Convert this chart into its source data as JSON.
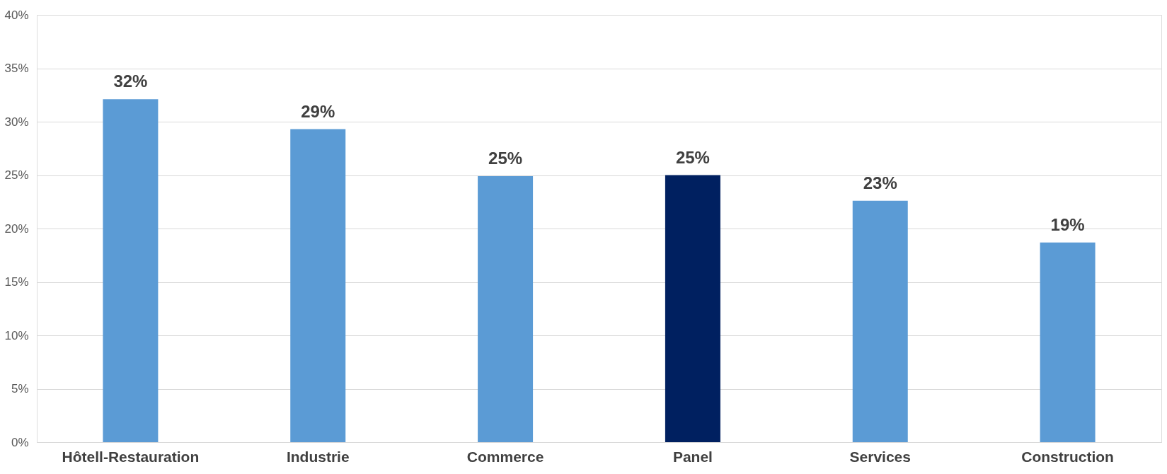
{
  "chart_data": {
    "type": "bar",
    "categories": [
      "Hôtell-Restauration",
      "Industrie",
      "Commerce",
      "Panel",
      "Services",
      "Construction"
    ],
    "values": [
      32.1,
      29.3,
      24.9,
      25.0,
      22.6,
      18.7
    ],
    "colors": [
      "#5b9bd5",
      "#5b9bd5",
      "#5b9bd5",
      "#002060",
      "#5b9bd5",
      "#5b9bd5"
    ],
    "value_labels": [
      "32%",
      "29%",
      "25%",
      "25%",
      "23%",
      "19%"
    ],
    "ylim": [
      0,
      40
    ],
    "yticks": [
      {
        "value": 0,
        "label": "0%"
      },
      {
        "value": 5,
        "label": "5%"
      },
      {
        "value": 10,
        "label": "10%"
      },
      {
        "value": 15,
        "label": "15%"
      },
      {
        "value": 20,
        "label": "20%"
      },
      {
        "value": 25,
        "label": "25%"
      },
      {
        "value": 30,
        "label": "30%"
      },
      {
        "value": 35,
        "label": "35%"
      },
      {
        "value": 40,
        "label": "40%"
      }
    ],
    "grid": "y"
  }
}
